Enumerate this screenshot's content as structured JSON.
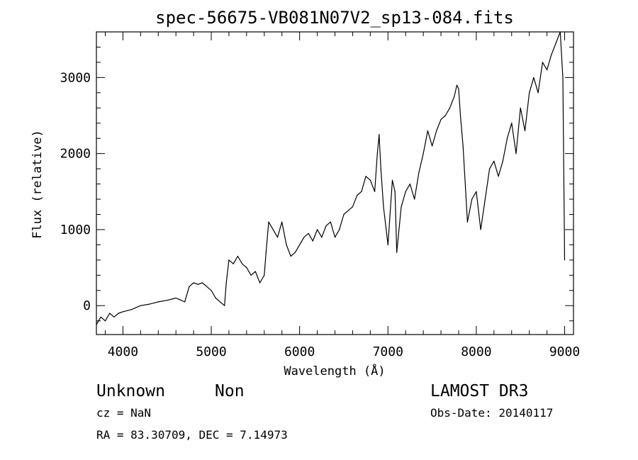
{
  "chart_data": {
    "type": "line",
    "title": "spec-56675-VB081N07V2_sp13-084.fits",
    "xlabel": "Wavelength (Å)",
    "ylabel": "Flux (relative)",
    "xlim": [
      3700,
      9100
    ],
    "ylim": [
      -380,
      3600
    ],
    "xticks": [
      4000,
      5000,
      6000,
      7000,
      8000,
      9000
    ],
    "yticks": [
      0,
      1000,
      2000,
      3000
    ],
    "grid": false,
    "series": [
      {
        "x": [
          3700,
          3750,
          3800,
          3850,
          3900,
          3950,
          4000,
          4100,
          4200,
          4300,
          4400,
          4500,
          4600,
          4700,
          4750,
          4800,
          4850,
          4900,
          4950,
          5000,
          5050,
          5100,
          5150,
          5170,
          5200,
          5250,
          5300,
          5350,
          5400,
          5450,
          5500,
          5550,
          5600,
          5620,
          5650,
          5700,
          5750,
          5800,
          5850,
          5900,
          5950,
          6000,
          6050,
          6100,
          6150,
          6200,
          6250,
          6300,
          6350,
          6400,
          6450,
          6500,
          6550,
          6600,
          6650,
          6700,
          6750,
          6800,
          6850,
          6880,
          6900,
          6920,
          6950,
          7000,
          7050,
          7080,
          7100,
          7150,
          7200,
          7250,
          7300,
          7350,
          7400,
          7450,
          7500,
          7550,
          7600,
          7650,
          7700,
          7750,
          7780,
          7800,
          7820,
          7850,
          7900,
          7950,
          8000,
          8050,
          8100,
          8150,
          8200,
          8250,
          8300,
          8350,
          8400,
          8450,
          8500,
          8550,
          8600,
          8650,
          8700,
          8750,
          8800,
          8850,
          8900,
          8950,
          8980,
          9000
        ],
        "y": [
          -250,
          -150,
          -200,
          -100,
          -150,
          -100,
          -80,
          -50,
          0,
          20,
          50,
          70,
          100,
          50,
          250,
          300,
          280,
          300,
          250,
          200,
          100,
          50,
          0,
          300,
          600,
          550,
          650,
          550,
          500,
          400,
          450,
          300,
          400,
          700,
          1100,
          1000,
          900,
          1100,
          800,
          650,
          700,
          800,
          900,
          950,
          850,
          1000,
          900,
          1050,
          1100,
          900,
          1000,
          1200,
          1250,
          1300,
          1450,
          1500,
          1700,
          1650,
          1500,
          2000,
          2250,
          1800,
          1300,
          800,
          1650,
          1500,
          700,
          1300,
          1500,
          1600,
          1400,
          1750,
          2000,
          2300,
          2100,
          2300,
          2450,
          2500,
          2600,
          2750,
          2900,
          2850,
          2500,
          2100,
          1100,
          1400,
          1500,
          1000,
          1400,
          1800,
          1900,
          1700,
          1900,
          2200,
          2400,
          2000,
          2600,
          2300,
          2800,
          3000,
          2800,
          3200,
          3100,
          3300,
          3450,
          3600,
          3000,
          600
        ]
      }
    ]
  },
  "footer": {
    "object_type": "Unknown",
    "object_class": "Non",
    "survey": "LAMOST DR3",
    "cz": "cz = NaN",
    "obs_date": "Obs-Date: 20140117",
    "coords": "RA =  83.30709, DEC =   7.14973"
  }
}
